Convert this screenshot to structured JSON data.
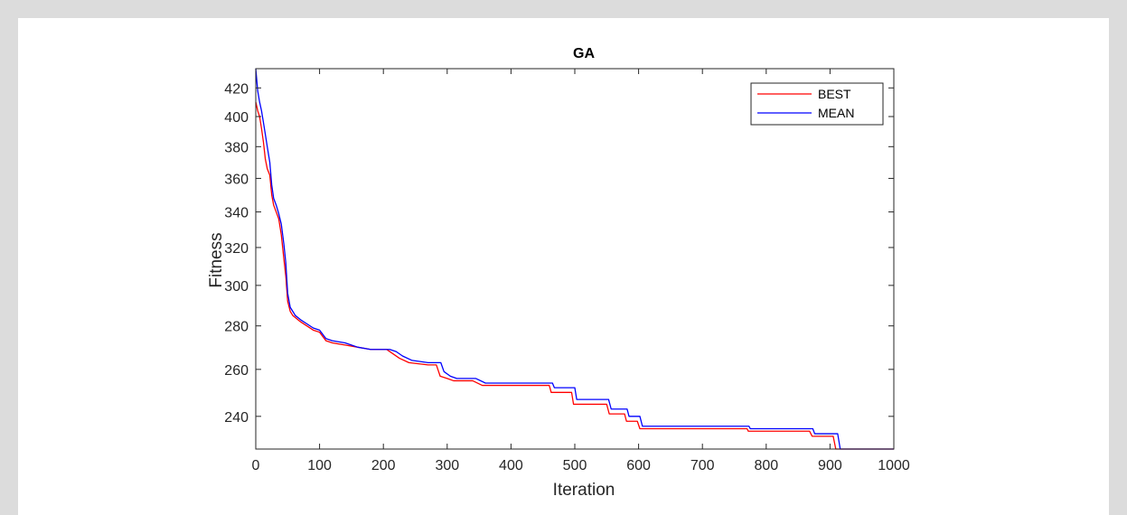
{
  "chart_data": {
    "type": "line",
    "title": "GA",
    "xlabel": "Iteration",
    "ylabel": "Fitness",
    "xlim": [
      0,
      1000
    ],
    "ylim": [
      227,
      434
    ],
    "y_scale": "log",
    "grid": false,
    "legend_position": "top-right",
    "x_ticks": [
      0,
      100,
      200,
      300,
      400,
      500,
      600,
      700,
      800,
      900,
      1000
    ],
    "y_ticks": [
      240,
      260,
      280,
      300,
      320,
      340,
      360,
      380,
      400,
      420
    ],
    "series": [
      {
        "name": "BEST",
        "color": "#ff0000",
        "points": [
          [
            0,
            410
          ],
          [
            3,
            404
          ],
          [
            6,
            400
          ],
          [
            9,
            392
          ],
          [
            12,
            383
          ],
          [
            15,
            372
          ],
          [
            18,
            366
          ],
          [
            22,
            362
          ],
          [
            25,
            350
          ],
          [
            28,
            344
          ],
          [
            32,
            340
          ],
          [
            36,
            336
          ],
          [
            40,
            327
          ],
          [
            44,
            314
          ],
          [
            47,
            305
          ],
          [
            50,
            292
          ],
          [
            54,
            287
          ],
          [
            58,
            285
          ],
          [
            62,
            284
          ],
          [
            70,
            282
          ],
          [
            80,
            280
          ],
          [
            90,
            278
          ],
          [
            100,
            277
          ],
          [
            110,
            273
          ],
          [
            120,
            272
          ],
          [
            140,
            271
          ],
          [
            160,
            270
          ],
          [
            180,
            269
          ],
          [
            205,
            269
          ],
          [
            215,
            267
          ],
          [
            225,
            265
          ],
          [
            240,
            263
          ],
          [
            270,
            262
          ],
          [
            283,
            262
          ],
          [
            289,
            257
          ],
          [
            300,
            256
          ],
          [
            310,
            255
          ],
          [
            340,
            255
          ],
          [
            355,
            253
          ],
          [
            400,
            253
          ],
          [
            460,
            253
          ],
          [
            463,
            250
          ],
          [
            495,
            250
          ],
          [
            498,
            245
          ],
          [
            550,
            245
          ],
          [
            554,
            241
          ],
          [
            578,
            241
          ],
          [
            581,
            238
          ],
          [
            598,
            238
          ],
          [
            602,
            235
          ],
          [
            770,
            235
          ],
          [
            772,
            234
          ],
          [
            868,
            234
          ],
          [
            872,
            232
          ],
          [
            905,
            232
          ],
          [
            909,
            227
          ],
          [
            1000,
            227
          ]
        ]
      },
      {
        "name": "MEAN",
        "color": "#0000ff",
        "points": [
          [
            0,
            434
          ],
          [
            3,
            418
          ],
          [
            6,
            410
          ],
          [
            9,
            404
          ],
          [
            12,
            396
          ],
          [
            15,
            388
          ],
          [
            18,
            380
          ],
          [
            22,
            370
          ],
          [
            25,
            356
          ],
          [
            28,
            348
          ],
          [
            32,
            344
          ],
          [
            36,
            339
          ],
          [
            40,
            333
          ],
          [
            44,
            322
          ],
          [
            47,
            312
          ],
          [
            50,
            296
          ],
          [
            54,
            289
          ],
          [
            58,
            287
          ],
          [
            62,
            285
          ],
          [
            70,
            283
          ],
          [
            80,
            281
          ],
          [
            90,
            279
          ],
          [
            100,
            278
          ],
          [
            110,
            274
          ],
          [
            120,
            273
          ],
          [
            140,
            272
          ],
          [
            160,
            270
          ],
          [
            180,
            269
          ],
          [
            210,
            269
          ],
          [
            220,
            268
          ],
          [
            230,
            266
          ],
          [
            245,
            264
          ],
          [
            270,
            263
          ],
          [
            290,
            263
          ],
          [
            295,
            259
          ],
          [
            305,
            257
          ],
          [
            315,
            256
          ],
          [
            345,
            256
          ],
          [
            360,
            254
          ],
          [
            405,
            254
          ],
          [
            465,
            254
          ],
          [
            468,
            252
          ],
          [
            500,
            252
          ],
          [
            503,
            247
          ],
          [
            553,
            247
          ],
          [
            557,
            243
          ],
          [
            582,
            243
          ],
          [
            585,
            240
          ],
          [
            602,
            240
          ],
          [
            606,
            236
          ],
          [
            773,
            236
          ],
          [
            775,
            235
          ],
          [
            873,
            235
          ],
          [
            876,
            233
          ],
          [
            912,
            233
          ],
          [
            916,
            227
          ],
          [
            1000,
            227
          ]
        ]
      }
    ]
  }
}
